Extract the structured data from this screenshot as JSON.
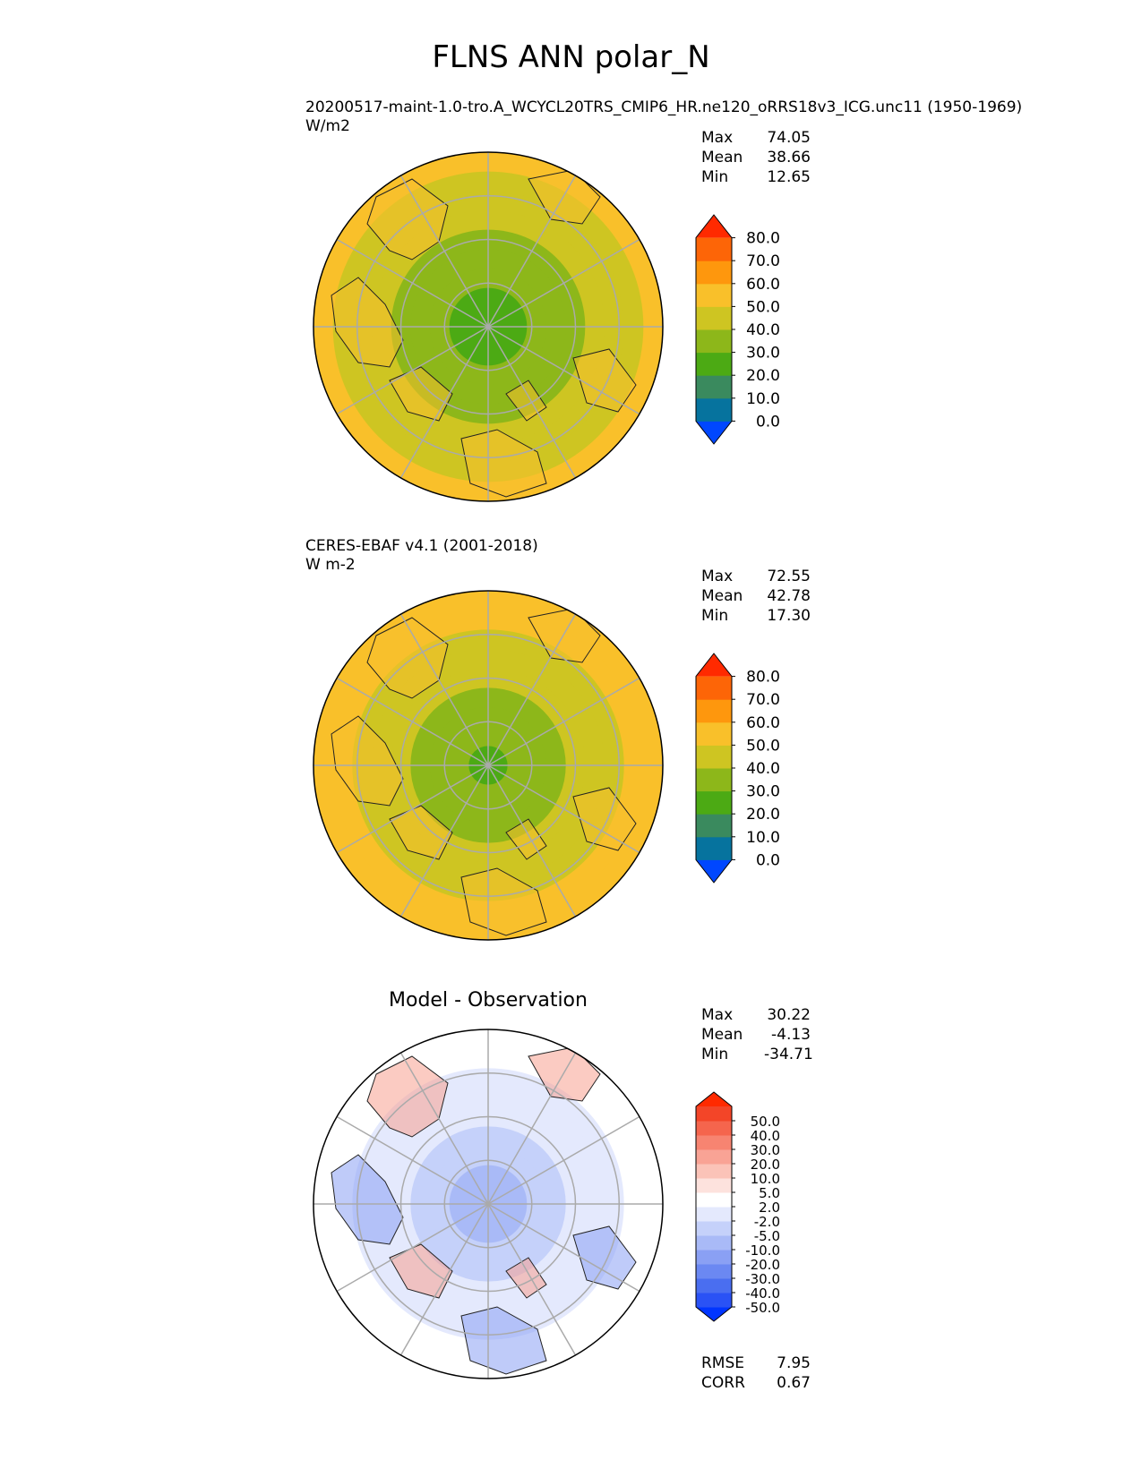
{
  "title": "FLNS ANN polar_N",
  "panels": [
    {
      "title_lines": [
        "20200517-maint-1.0-tro.A_WCYCL20TRS_CMIP6_HR.ne120_oRRS18v3_ICG.unc11 (1950-1969)",
        "W/m2"
      ],
      "stats": [
        {
          "label": "Max",
          "value": "74.05"
        },
        {
          "label": "Mean",
          "value": "38.66"
        },
        {
          "label": "Min",
          "value": "12.65"
        }
      ],
      "colorbar": {
        "levels": [
          "0.0",
          "10.0",
          "20.0",
          "30.0",
          "40.0",
          "50.0",
          "60.0",
          "70.0",
          "80.0"
        ],
        "colors": [
          "#0047ff",
          "#06739e",
          "#3a8a5e",
          "#4caa14",
          "#8db71a",
          "#cec522",
          "#f9c02a",
          "#fe970d",
          "#fd6507",
          "#ff2a00"
        ]
      },
      "field": {
        "pole": 24,
        "rim": 52,
        "land": "#f7bf2d",
        "ocean": "#c9c322"
      }
    },
    {
      "title_lines": [
        "CERES-EBAF v4.1 (2001-2018)",
        "W m-2"
      ],
      "stats": [
        {
          "label": "Max",
          "value": "72.55"
        },
        {
          "label": "Mean",
          "value": "42.78"
        },
        {
          "label": "Min",
          "value": "17.30"
        }
      ],
      "colorbar": {
        "levels": [
          "0.0",
          "10.0",
          "20.0",
          "30.0",
          "40.0",
          "50.0",
          "60.0",
          "70.0",
          "80.0"
        ],
        "colors": [
          "#0047ff",
          "#06739e",
          "#3a8a5e",
          "#4caa14",
          "#8db71a",
          "#cec522",
          "#f9c02a",
          "#fe970d",
          "#fd6507",
          "#ff2a00"
        ]
      },
      "field": {
        "pole": 28,
        "rim": 56,
        "land": "#f7bf2d",
        "ocean": "#cec522"
      }
    },
    {
      "title_lines": [
        "Model - Observation"
      ],
      "stats": [
        {
          "label": "Max",
          "value": "30.22"
        },
        {
          "label": "Mean",
          "value": "-4.13"
        },
        {
          "label": "Min",
          "value": "-34.71"
        }
      ],
      "colorbar": {
        "levels": [
          "-50.0",
          "-40.0",
          "-30.0",
          "-20.0",
          "-10.0",
          "-5.0",
          "-2.0",
          "2.0",
          "5.0",
          "10.0",
          "20.0",
          "30.0",
          "40.0",
          "50.0"
        ],
        "colors": [
          "#0035ff",
          "#2a52f5",
          "#4a6ef0",
          "#6b88f2",
          "#8aa0f4",
          "#a9baf7",
          "#c5d1fa",
          "#e4e9fd",
          "#ffffff",
          "#fde2dd",
          "#fbc3b8",
          "#f9a395",
          "#f78471",
          "#f5654d",
          "#f34528",
          "#ff2a00"
        ]
      },
      "field": {
        "pole": -8,
        "rim": 4
      }
    }
  ],
  "diff_metrics": [
    {
      "label": "RMSE",
      "value": "7.95"
    },
    {
      "label": "CORR",
      "value": "0.67"
    }
  ],
  "chart_data": [
    {
      "type": "heatmap",
      "title": "20200517-maint-1.0-tro.A_WCYCL20TRS_CMIP6_HR.ne120_oRRS18v3_ICG.unc11 (1950-1969)",
      "units": "W/m2",
      "projection": "north polar stereographic",
      "contour_levels": [
        0,
        10,
        20,
        30,
        40,
        50,
        60,
        70,
        80
      ],
      "max": 74.05,
      "mean": 38.66,
      "min": 12.65
    },
    {
      "type": "heatmap",
      "title": "CERES-EBAF v4.1 (2001-2018)",
      "units": "W m-2",
      "projection": "north polar stereographic",
      "contour_levels": [
        0,
        10,
        20,
        30,
        40,
        50,
        60,
        70,
        80
      ],
      "max": 72.55,
      "mean": 42.78,
      "min": 17.3
    },
    {
      "type": "heatmap",
      "title": "Model - Observation",
      "projection": "north polar stereographic",
      "contour_levels": [
        -50,
        -40,
        -30,
        -20,
        -10,
        -5,
        -2,
        2,
        5,
        10,
        20,
        30,
        40,
        50
      ],
      "max": 30.22,
      "mean": -4.13,
      "min": -34.71,
      "rmse": 7.95,
      "corr": 0.67
    }
  ]
}
